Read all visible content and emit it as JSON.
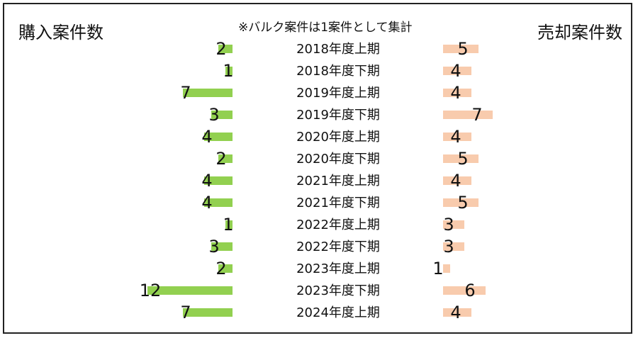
{
  "titles": {
    "left": "購入案件数",
    "right": "売却案件数",
    "note": "※バルク案件は1案件として集計"
  },
  "colors": {
    "left_bar": "#92d050",
    "right_bar": "#f8cbad"
  },
  "chart_data": {
    "type": "bar",
    "orientation": "horizontal-butterfly",
    "categories": [
      "2018年度上期",
      "2018年度下期",
      "2019年度上期",
      "2019年度下期",
      "2020年度上期",
      "2020年度下期",
      "2021年度上期",
      "2021年度下期",
      "2022年度上期",
      "2022年度下期",
      "2023年度上期",
      "2023年度下期",
      "2024年度上期"
    ],
    "series": [
      {
        "name": "購入案件数",
        "values": [
          2,
          1,
          7,
          3,
          4,
          2,
          4,
          4,
          1,
          3,
          2,
          12,
          7
        ]
      },
      {
        "name": "売却案件数",
        "values": [
          5,
          4,
          4,
          7,
          4,
          5,
          4,
          5,
          3,
          3,
          1,
          6,
          4
        ]
      }
    ],
    "grid": false,
    "legend": "none"
  }
}
